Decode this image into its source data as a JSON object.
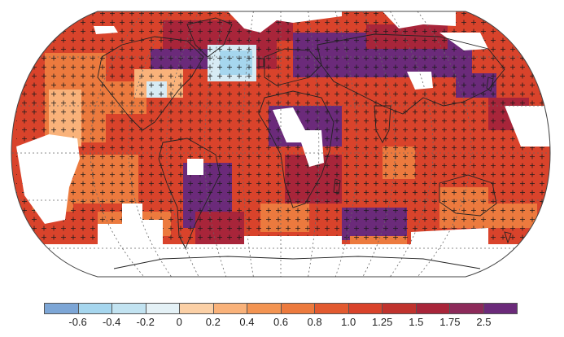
{
  "map": {
    "projection": "robinson",
    "field_colors": {
      "dominant": "#d9432b",
      "strong": "#a8253a",
      "extreme": "#6b2a7a",
      "moderate": "#ec7a3e",
      "light": "#f9b27a",
      "cool_light": "#d7ebf4",
      "cool": "#a6d6ee"
    },
    "stipple_symbol": "+",
    "stipple_meaning": "",
    "missing_data_color": "#ffffff",
    "coastline_color": "#222222",
    "graticule_style": "dotted"
  },
  "colorbar": {
    "bins": [
      {
        "color": "#7da6d6"
      },
      {
        "color": "#a6d6ee"
      },
      {
        "color": "#c2e3f1"
      },
      {
        "color": "#e4f1f6"
      },
      {
        "color": "#fbd0a6"
      },
      {
        "color": "#f9b27a"
      },
      {
        "color": "#f39452"
      },
      {
        "color": "#ec7a3e"
      },
      {
        "color": "#e25a30"
      },
      {
        "color": "#d9432b"
      },
      {
        "color": "#c0332e"
      },
      {
        "color": "#a8253a"
      },
      {
        "color": "#8c2a5a"
      },
      {
        "color": "#6b2a7a"
      }
    ],
    "tick_labels": [
      "-0.6",
      "-0.4",
      "-0.2",
      "0",
      "0.2",
      "0.4",
      "0.6",
      "0.8",
      "1.0",
      "1.25",
      "1.5",
      "1.75",
      "2.5"
    ]
  }
}
